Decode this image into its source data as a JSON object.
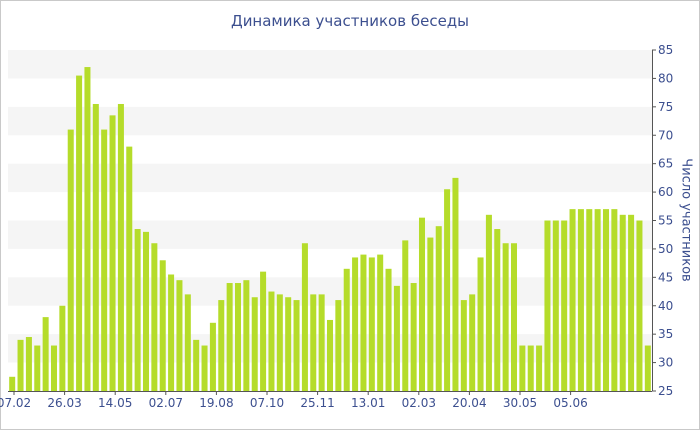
{
  "chart_data": {
    "type": "bar",
    "title": "Динамика участников беседы",
    "xlabel": "",
    "ylabel": "Число участников",
    "ylim": [
      25,
      85
    ],
    "y_ticks": [
      25,
      30,
      35,
      40,
      45,
      50,
      55,
      60,
      65,
      70,
      75,
      80,
      85
    ],
    "x_tick_labels": [
      "07.02",
      "26.03",
      "14.05",
      "02.07",
      "19.08",
      "07.10",
      "25.11",
      "13.01",
      "02.03",
      "20.04",
      "30.05",
      "05.06"
    ],
    "grid": "alternating horizontal bands",
    "legend": "none",
    "colors": {
      "bar": "#b5dc2a",
      "band": "#f5f5f5",
      "text": "#3c4f8f",
      "axis": "#555555"
    },
    "values": [
      27.5,
      34,
      34.5,
      33,
      38,
      33,
      40,
      71,
      80.5,
      82,
      75.5,
      71,
      73.5,
      75.5,
      68,
      53.5,
      53,
      51,
      48,
      45.5,
      44.5,
      42,
      34,
      33,
      37,
      41,
      44,
      44,
      44.5,
      41.5,
      46,
      42.5,
      42,
      41.5,
      41,
      51,
      42,
      42,
      37.5,
      41,
      46.5,
      48.5,
      49,
      48.5,
      49,
      46.5,
      43.5,
      51.5,
      44,
      55.5,
      52,
      54,
      60.5,
      62.5,
      41,
      42,
      48.5,
      56,
      53.5,
      51,
      51,
      33,
      33,
      33,
      55,
      55,
      55,
      57,
      57,
      57,
      57,
      57,
      57,
      56,
      56,
      55,
      33
    ]
  }
}
